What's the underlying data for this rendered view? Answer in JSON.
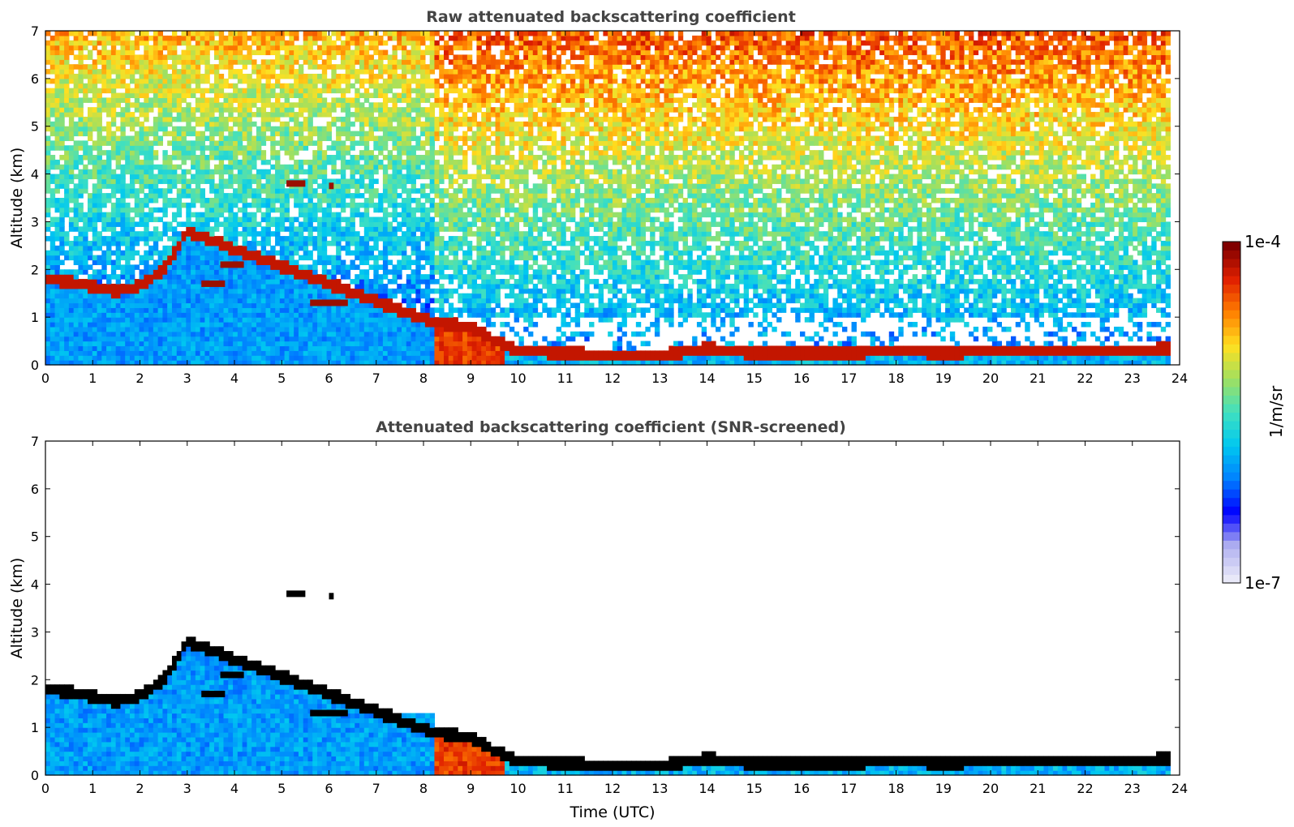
{
  "chart_data": [
    {
      "type": "heatmap",
      "title": "Raw attenuated backscattering coefficient",
      "ylabel": "Altitude (km)",
      "xlabel": "",
      "xlim": [
        0,
        24
      ],
      "ylim": [
        0,
        7
      ],
      "x_ticks": [
        "0",
        "1",
        "2",
        "3",
        "4",
        "5",
        "6",
        "7",
        "8",
        "9",
        "10",
        "11",
        "12",
        "13",
        "14",
        "15",
        "16",
        "17",
        "18",
        "19",
        "20",
        "21",
        "22",
        "23",
        "24"
      ],
      "y_ticks": [
        "0",
        "1",
        "2",
        "3",
        "4",
        "5",
        "6",
        "7"
      ],
      "data_end_hour": 23.8,
      "features": {
        "cloud_base_km": [
          [
            0,
            1.8
          ],
          [
            0.5,
            1.75
          ],
          [
            1,
            1.65
          ],
          [
            1.5,
            1.55
          ],
          [
            2,
            1.65
          ],
          [
            2.5,
            2.0
          ],
          [
            3,
            2.8
          ],
          [
            8.2,
            0.9
          ],
          [
            9,
            0.8
          ],
          [
            9.5,
            0.5
          ],
          [
            10,
            0.3
          ],
          [
            11,
            0.25
          ],
          [
            12,
            0.2
          ],
          [
            13,
            0.2
          ],
          [
            14,
            0.35
          ],
          [
            15,
            0.25
          ],
          [
            16,
            0.25
          ],
          [
            17,
            0.25
          ],
          [
            18,
            0.3
          ],
          [
            19,
            0.25
          ],
          [
            20,
            0.3
          ],
          [
            21,
            0.3
          ],
          [
            22,
            0.3
          ],
          [
            23,
            0.3
          ],
          [
            23.8,
            0.35
          ]
        ],
        "elevated_layers": [
          {
            "x_range": [
              5.1,
              5.5
            ],
            "altitude_km": 3.8
          },
          {
            "x_range": [
              6.0,
              6.1
            ],
            "altitude_km": 3.75
          },
          {
            "x_range": [
              3.3,
              3.8
            ],
            "altitude_km": 1.7
          },
          {
            "x_range": [
              3.7,
              4.2
            ],
            "altitude_km": 2.1
          },
          {
            "x_range": [
              5.6,
              6.4
            ],
            "altitude_km": 1.3
          }
        ]
      }
    },
    {
      "type": "heatmap",
      "title": "Attenuated backscattering coefficient (SNR-screened)",
      "ylabel": "Altitude (km)",
      "xlabel": "Time (UTC)",
      "xlim": [
        0,
        24
      ],
      "ylim": [
        0,
        7
      ],
      "x_ticks": [
        "0",
        "1",
        "2",
        "3",
        "4",
        "5",
        "6",
        "7",
        "8",
        "9",
        "10",
        "11",
        "12",
        "13",
        "14",
        "15",
        "16",
        "17",
        "18",
        "19",
        "20",
        "21",
        "22",
        "23",
        "24"
      ],
      "y_ticks": [
        "0",
        "1",
        "2",
        "3",
        "4",
        "5",
        "6",
        "7"
      ],
      "data_end_hour": 23.8
    }
  ],
  "colorbar": {
    "label": "1/m/sr",
    "max_label": "1e-4",
    "min_label": "1e-7",
    "scale": "log",
    "range": [
      1e-07,
      0.0001
    ],
    "colors": [
      "#e8e8f8",
      "#b0b0f0",
      "#0000ff",
      "#0080ff",
      "#00c8f0",
      "#40e0c0",
      "#a0e060",
      "#ffe020",
      "#ff8000",
      "#e02000",
      "#800000"
    ]
  }
}
